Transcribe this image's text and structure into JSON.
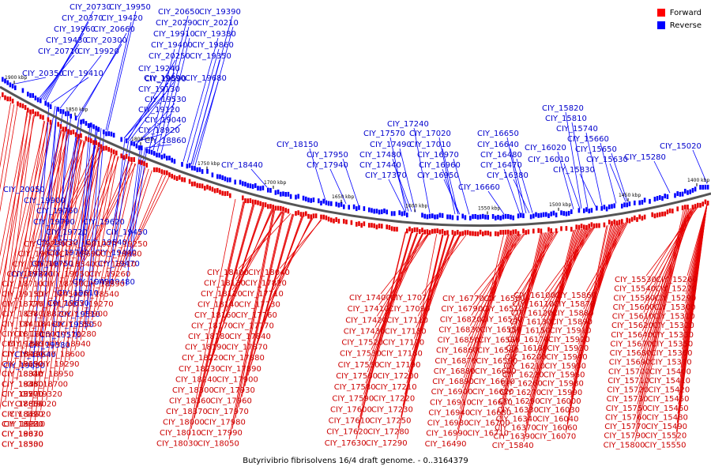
{
  "legend": [
    {
      "label": "Forward",
      "color": "#ff0000"
    },
    {
      "label": "Reverse",
      "color": "#0000ff"
    }
  ],
  "caption": "Butyrivibrio fibrisolvens 16/4 draft genome. - 0..3164379",
  "colors": {
    "forward": "#e60000",
    "forward_label": "#cc0000",
    "reverse": "#0000ff",
    "reverse_label": "#0000cc",
    "backbone": "#555555"
  },
  "kbp_ticks": [
    "1900 kbp",
    "1850 kbp",
    "1800 kbp",
    "1750 kbp",
    "1700 kbp",
    "1650 kbp",
    "1600 kbp",
    "1550 kbp",
    "1500 kbp",
    "1450 kbp",
    "1400 kbp"
  ],
  "reverse_labels": [
    "CIY_20730",
    "CIY_20370",
    "CIY_19960",
    "CIY_19430",
    "CIY_20710",
    "CIY_20350",
    "CIY_19950",
    "CIY_19420",
    "CIY_20660",
    "CIY_20300",
    "CIY_19920",
    "CIY_19410",
    "CIY_20650",
    "CIY_20290",
    "CIY_19910",
    "CIY_19400",
    "CIY_20250",
    "CIY_19890",
    "CIY_19390",
    "CIY_20210",
    "CIY_19380",
    "CIY_19860",
    "CIY_19350",
    "CIY_19680",
    "CIY_19240",
    "CIY_19590",
    "CIY_19130",
    "CIY_19530",
    "CIY_19120",
    "CIY_19040",
    "CIY_18920",
    "CIY_18860",
    "CIY_18440",
    "CIY_18150",
    "CIY_17950",
    "CIY_17940",
    "CIY_17570",
    "CIY_17490",
    "CIY_17480",
    "CIY_17440",
    "CIY_17370",
    "CIY_17240",
    "CIY_17020",
    "CIY_17010",
    "CIY_16970",
    "CIY_16960",
    "CIY_16950",
    "CIY_16650",
    "CIY_16640",
    "CIY_16480",
    "CIY_16470",
    "CIY_16380",
    "CIY_16660",
    "CIY_16020",
    "CIY_16010",
    "CIY_15820",
    "CIY_15810",
    "CIY_15740",
    "CIY_15660",
    "CIY_15650",
    "CIY_15630",
    "CIY_15830",
    "CIY_15280",
    "CIY_15020",
    "CIY_20050",
    "CIY_19900",
    "CIY_19760",
    "CIY_19620",
    "CIY_19790",
    "CIY_19720",
    "CIY_19450",
    "CIY_19730",
    "CIY_19540",
    "CIY_19740",
    "CIY_19440",
    "CIY_19750",
    "CIY_19470",
    "CIY_19770",
    "CIY_19480",
    "CIY_19490",
    "CIY_19610",
    "CIY_19630",
    "CIY_19510",
    "CIY_19550",
    "CIY_19570",
    "CIY_19580",
    "CIY_19640",
    "CIY_19650"
  ],
  "forward_labels": [
    "CIY_19230",
    "CIY_19000",
    "CIY_19070",
    "CIY_18780",
    "CIY_18710",
    "CIY_19150",
    "CIY_18770",
    "CIY_18380",
    "CIY_18410",
    "CIY_18110",
    "CIY_19340",
    "CIY_18960",
    "CIY_18650",
    "CIY_18310",
    "CIY_19360",
    "CIY_18970",
    "CIY_18660",
    "CIY_18320",
    "CIY_18980",
    "CIY_18670",
    "CIY_18330",
    "CIY_19010",
    "CIY_18690",
    "CIY_18340",
    "CIY_19050",
    "CIY_18730",
    "CIY_18450",
    "CIY_19170",
    "CIY_18820",
    "CIY_18460",
    "CIY_19180",
    "CIY_18830",
    "CIY_18470",
    "CIY_19190",
    "CIY_18840",
    "CIY_18480",
    "CIY_19200",
    "CIY_18850",
    "CIY_18490",
    "CIY_19220",
    "CIY_18870",
    "CIY_18500",
    "CIY_19250",
    "CIY_18880",
    "CIY_18510",
    "CIY_19260",
    "CIY_18890",
    "CIY_18540",
    "CIY_19270",
    "CIY_18900",
    "CIY_18550",
    "CIY_19280",
    "CIY_18940",
    "CIY_18600",
    "CIY_19290",
    "CIY_18950",
    "CIY_18700",
    "CIY_19320",
    "CIY_19020",
    "CIY_18720",
    "CIY_19310",
    "CIY_19030",
    "CIY_18400",
    "CIY_18130",
    "CIY_18120",
    "CIY_18140",
    "CIY_18160",
    "CIY_18170",
    "CIY_18180",
    "CIY_18190",
    "CIY_18220",
    "CIY_18230",
    "CIY_18240",
    "CIY_18300",
    "CIY_18360",
    "CIY_18370",
    "CIY_18000",
    "CIY_18010",
    "CIY_18030",
    "CIY_18040",
    "CIY_17820",
    "CIY_17710",
    "CIY_17730",
    "CIY_17760",
    "CIY_17770",
    "CIY_17840",
    "CIY_17870",
    "CIY_17880",
    "CIY_17890",
    "CIY_17900",
    "CIY_17930",
    "CIY_17960",
    "CIY_17970",
    "CIY_17980",
    "CIY_17990",
    "CIY_18050",
    "CIY_17400",
    "CIY_17410",
    "CIY_17420",
    "CIY_17430",
    "CIY_17520",
    "CIY_17530",
    "CIY_17550",
    "CIY_17560",
    "CIY_17580",
    "CIY_17590",
    "CIY_17600",
    "CIY_17610",
    "CIY_17620",
    "CIY_17630",
    "CIY_17070",
    "CIY_17090",
    "CIY_17110",
    "CIY_17130",
    "CIY_17170",
    "CIY_17180",
    "CIY_17190",
    "CIY_17200",
    "CIY_17210",
    "CIY_17220",
    "CIY_17230",
    "CIY_17250",
    "CIY_17280",
    "CIY_17290",
    "CIY_16770",
    "CIY_16790",
    "CIY_16820",
    "CIY_16830",
    "CIY_16850",
    "CIY_16860",
    "CIY_16870",
    "CIY_16880",
    "CIY_16890",
    "CIY_16900",
    "CIY_16910",
    "CIY_16940",
    "CIY_16980",
    "CIY_16990",
    "CIY_16490",
    "CIY_16500",
    "CIY_16510",
    "CIY_16530",
    "CIY_16550",
    "CIY_16560",
    "CIY_16580",
    "CIY_16590",
    "CIY_16600",
    "CIY_16610",
    "CIY_16620",
    "CIY_16630",
    "CIY_16680",
    "CIY_16700",
    "CIY_16710",
    "CIY_16100",
    "CIY_16110",
    "CIY_16120",
    "CIY_16130",
    "CIY_16150",
    "CIY_16170",
    "CIY_16180",
    "CIY_16200",
    "CIY_16210",
    "CIY_16220",
    "CIY_16260",
    "CIY_16270",
    "CIY_16290",
    "CIY_16330",
    "CIY_16340",
    "CIY_16370",
    "CIY_16390",
    "CIY_15840",
    "CIY_15860",
    "CIY_15870",
    "CIY_15880",
    "CIY_15890",
    "CIY_15910",
    "CIY_15920",
    "CIY_15930",
    "CIY_15940",
    "CIY_15950",
    "CIY_15960",
    "CIY_15980",
    "CIY_15990",
    "CIY_16000",
    "CIY_16030",
    "CIY_16040",
    "CIY_16060",
    "CIY_16070",
    "CIY_15530",
    "CIY_15540",
    "CIY_15580",
    "CIY_15600",
    "CIY_15610",
    "CIY_15620",
    "CIY_15640",
    "CIY_15670",
    "CIY_15680",
    "CIY_15690",
    "CIY_15700",
    "CIY_15710",
    "CIY_15720",
    "CIY_15730",
    "CIY_15750",
    "CIY_15760",
    "CIY_15770",
    "CIY_15790",
    "CIY_15800",
    "CIY_15260",
    "CIY_15270",
    "CIY_15290",
    "CIY_15300",
    "CIY_15310",
    "CIY_15320",
    "CIY_15330",
    "CIY_15350",
    "CIY_15360",
    "CIY_15370",
    "CIY_15400",
    "CIY_15410",
    "CIY_15420",
    "CIY_15450",
    "CIY_15460",
    "CIY_15480",
    "CIY_15490",
    "CIY_15520",
    "CIY_15550"
  ]
}
